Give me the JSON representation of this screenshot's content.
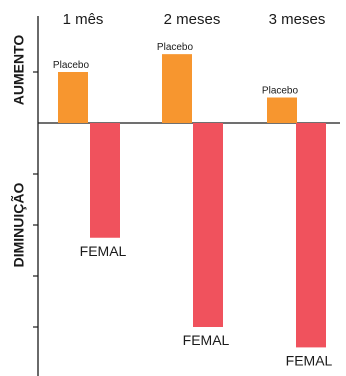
{
  "chart_data": {
    "type": "bar",
    "categories": [
      "1 mês",
      "2 meses",
      "3 meses"
    ],
    "series": [
      {
        "name": "Placebo",
        "values": [
          1.0,
          1.35,
          0.5
        ],
        "color": "#f7962f"
      },
      {
        "name": "FEMAL",
        "values": [
          -2.25,
          -4.0,
          -4.4
        ],
        "color": "#f0525d"
      }
    ],
    "increase_label": "AUMENTO",
    "decrease_label": "DIMINUIÇÃO",
    "ylim": [
      -4.8,
      2.0
    ],
    "grid": false,
    "bar_value_labels": true
  }
}
